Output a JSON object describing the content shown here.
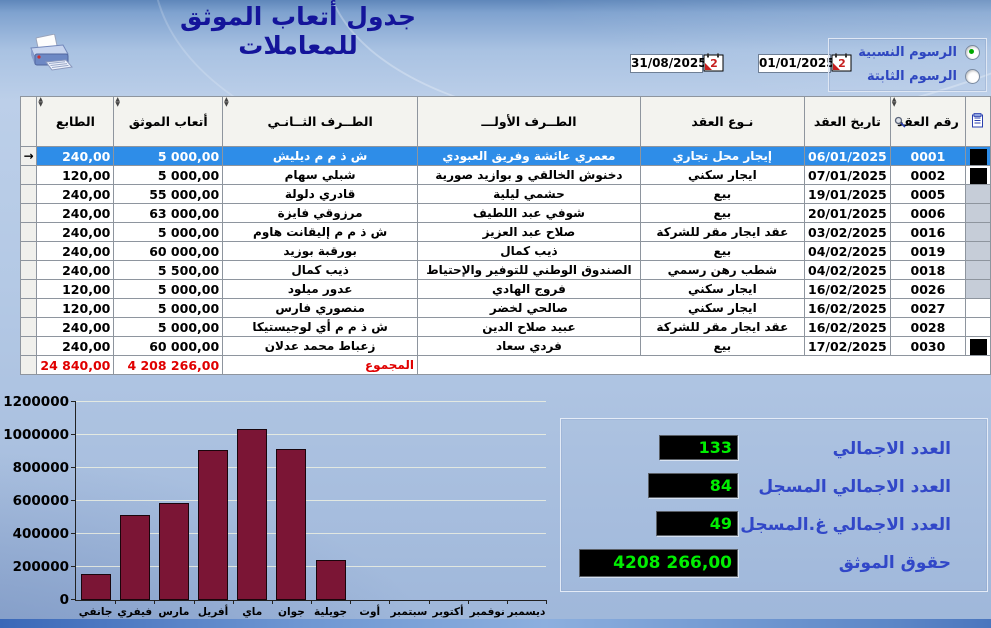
{
  "window": {
    "title": "جدول أتعاب الموثق للمعاملات"
  },
  "filters": {
    "date_to": "31/08/2025",
    "date_from": "01/01/2025",
    "fee_type_options": [
      {
        "label": "الرسوم النسبية",
        "selected": true
      },
      {
        "label": "الرسوم الثابتة",
        "selected": false
      }
    ]
  },
  "table": {
    "columns": {
      "stamp": "الطابع",
      "fee": "أتعاب الموثق",
      "party2": "الطــرف الثــانـي",
      "party1": "الطــرف الأولـــ",
      "type": "نـوع العقد",
      "date": "تاريخ العقد",
      "number": "رقم العقد"
    },
    "rows": [
      {
        "number": "0001",
        "date": "06/01/2025",
        "type": "إيجار محل تجاري",
        "party1": "معمري عائشة وفريق العبودي",
        "party2": "ش ذ م م ديليش",
        "fee": "5 000,00",
        "stamp": "240,00",
        "selected": true,
        "indicator": "black"
      },
      {
        "number": "0002",
        "date": "07/01/2025",
        "type": "ايجار سكني",
        "party1": "دخنوش الخالقي و بوازيد صورية",
        "party2": "شبلي سهام",
        "fee": "5 000,00",
        "stamp": "120,00",
        "selected": false,
        "indicator": "black"
      },
      {
        "number": "0005",
        "date": "19/01/2025",
        "type": "بيع",
        "party1": "حشمي ليلية",
        "party2": "قادري دلولة",
        "fee": "55 000,00",
        "stamp": "240,00",
        "selected": false,
        "indicator": "dither"
      },
      {
        "number": "0006",
        "date": "20/01/2025",
        "type": "بيع",
        "party1": "شوفي عبد اللطيف",
        "party2": "مرزوقي فايزة",
        "fee": "63 000,00",
        "stamp": "240,00",
        "selected": false,
        "indicator": "dither"
      },
      {
        "number": "0016",
        "date": "03/02/2025",
        "type": "عقد ايجار مقر للشركة",
        "party1": "صلاح عبد العزيز",
        "party2": "ش ذ م م إليقانت هاوم",
        "fee": "5 000,00",
        "stamp": "240,00",
        "selected": false,
        "indicator": "dither"
      },
      {
        "number": "0019",
        "date": "04/02/2025",
        "type": "بيع",
        "party1": "ذيب كمال",
        "party2": "بورقبة بوزيد",
        "fee": "60 000,00",
        "stamp": "240,00",
        "selected": false,
        "indicator": "dither"
      },
      {
        "number": "0018",
        "date": "04/02/2025",
        "type": "شطب رهن رسمي",
        "party1": "الصندوق الوطني للتوفير والإحتياط",
        "party2": "ذيب كمال",
        "fee": "5 500,00",
        "stamp": "240,00",
        "selected": false,
        "indicator": "dither"
      },
      {
        "number": "0026",
        "date": "16/02/2025",
        "type": "ايجار سكني",
        "party1": "فروج الهادي",
        "party2": "عدور ميلود",
        "fee": "5 000,00",
        "stamp": "120,00",
        "selected": false,
        "indicator": "dither"
      },
      {
        "number": "0027",
        "date": "16/02/2025",
        "type": "ايجار سكني",
        "party1": "صالحي لخضر",
        "party2": "منصوري فارس",
        "fee": "5 000,00",
        "stamp": "120,00",
        "selected": false,
        "indicator": "none"
      },
      {
        "number": "0028",
        "date": "16/02/2025",
        "type": "عقد ايجار مقر للشركة",
        "party1": "عبيد صلاح الدين",
        "party2": "ش ذ م م أي لوجيستيكا",
        "fee": "5 000,00",
        "stamp": "240,00",
        "selected": false,
        "indicator": "none"
      },
      {
        "number": "0030",
        "date": "17/02/2025",
        "type": "بيع",
        "party1": "فردي سعاد",
        "party2": "زعباط محمد عدلان",
        "fee": "60 000,00",
        "stamp": "240,00",
        "selected": false,
        "indicator": "black"
      }
    ],
    "total": {
      "label": "المجموع",
      "fee": "4 208 266,00",
      "stamp": "24 840,00"
    }
  },
  "summary": {
    "rows": [
      {
        "label": "العدد الاجمالي",
        "value": "133"
      },
      {
        "label": "العدد الاجمالي المسجل",
        "value": "84"
      },
      {
        "label": "العدد الاجمالي غ.المسجل",
        "value": "49"
      },
      {
        "label": "حقوق الموثق",
        "value": "4208 266,00"
      }
    ]
  },
  "chart_data": {
    "type": "bar",
    "title": "",
    "xlabel": "",
    "ylabel": "",
    "categories": [
      "جانفي",
      "فيفري",
      "مارس",
      "أفريل",
      "ماي",
      "جوان",
      "جويلية",
      "أوت",
      "سبتمبر",
      "أكتوبر",
      "نوفمبر",
      "ديسمبر"
    ],
    "values": [
      160000,
      515000,
      590000,
      910000,
      1035000,
      915000,
      245000,
      0,
      0,
      0,
      0,
      0
    ],
    "ylim": [
      0,
      1200000
    ],
    "yticks": [
      0,
      200000,
      400000,
      600000,
      800000,
      1000000,
      1200000
    ],
    "grid": true,
    "legend_position": "none",
    "bar_color": "#7b1535"
  },
  "colors": {
    "accent_blue_label": "#3147c8",
    "lcd_green": "#00ef00",
    "selected_row": "#2e8de8",
    "total_red": "#e00000"
  }
}
